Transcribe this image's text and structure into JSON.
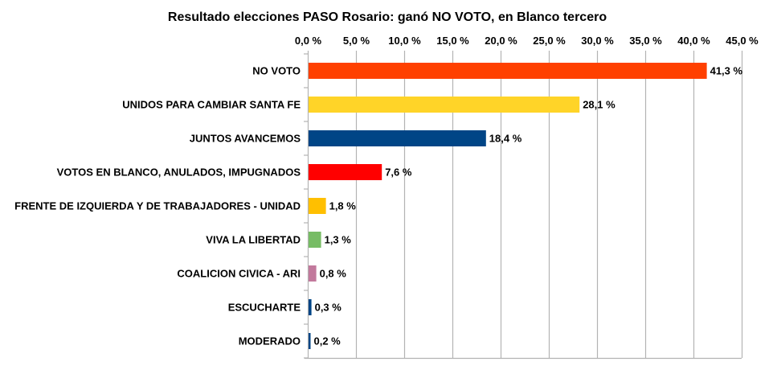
{
  "chart_data": {
    "type": "bar",
    "orientation": "horizontal",
    "title": "Resultado elecciones PASO Rosario: ganó NO VOTO,  en Blanco tercero",
    "xlabel": "",
    "ylabel": "",
    "xlim": [
      0,
      45
    ],
    "x_ticks": [
      "0,0 %",
      "5,0 %",
      "10,0 %",
      "15,0 %",
      "20,0 %",
      "25,0 %",
      "30,0 %",
      "35,0 %",
      "40,0 %",
      "45,0 %"
    ],
    "x_axis_position": "top",
    "grid": "vertical",
    "legend": "none",
    "categories": [
      "NO VOTO",
      "UNIDOS PARA CAMBIAR SANTA FE",
      "JUNTOS AVANCEMOS",
      "VOTOS EN BLANCO, ANULADOS, IMPUGNADOS",
      "FRENTE DE IZQUIERDA Y DE TRABAJADORES - UNIDAD",
      "VIVA LA LIBERTAD",
      "COALICION CIVICA - ARI",
      "ESCUCHARTE",
      "MODERADO"
    ],
    "values": [
      41.3,
      28.1,
      18.4,
      7.6,
      1.8,
      1.3,
      0.8,
      0.3,
      0.2
    ],
    "data_labels": [
      "41,3 %",
      "28,1 %",
      "18,4 %",
      "7,6 %",
      "1,8 %",
      "1,3 %",
      "0,8 %",
      "0,3 %",
      "0,2 %"
    ],
    "colors": [
      "#ff4000",
      "#ffd428",
      "#004586",
      "#ff0000",
      "#ffbf00",
      "#77bc65",
      "#c2799c",
      "#004586",
      "#004586"
    ]
  }
}
